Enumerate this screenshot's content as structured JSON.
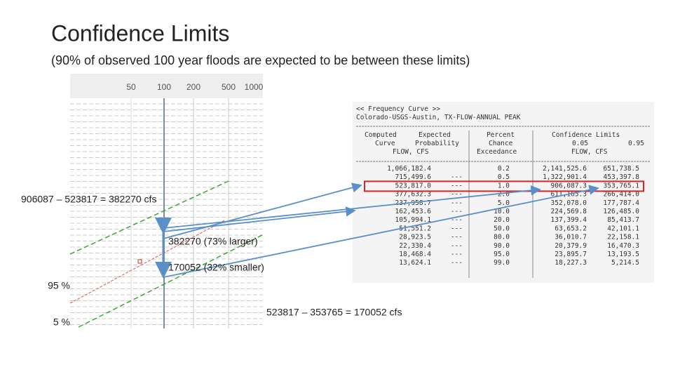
{
  "title": "Confidence Limits",
  "subtitle": "(90% of observed 100 year floods are expected to be between these limits)",
  "plot": {
    "x_labels": [
      "50",
      "100",
      "200",
      "500",
      "1000"
    ],
    "curve_labels": [
      "95 %",
      "5 %"
    ]
  },
  "annotations": [
    "906087 – 523817 = 382270 cfs",
    "382270 (73% larger)",
    "170052 (32% smaller)",
    "523817 – 353765 = 170052 cfs"
  ],
  "table": {
    "heading": "<< Frequency Curve >>",
    "location": "Colorado-USGS-Austin, TX-FLOW-ANNUAL PEAK",
    "columns": {
      "computed": "Computed",
      "expected": "Expected",
      "curve": "Curve",
      "probability": "Probability",
      "percent": "Percent",
      "chance": "Chance",
      "exceedance": "Exceedance",
      "confidence": "Confidence Limits",
      "upper": "0.05",
      "lower": "0.95",
      "flow_left": "FLOW, CFS",
      "flow_right": "FLOW, CFS"
    },
    "rows": [
      {
        "computed": "1,066,182.4",
        "percent": "0.2",
        "upper": "2,141,525.6",
        "lower": "651,738.5"
      },
      {
        "computed": "715,499.6",
        "expected": "---",
        "percent": "0.5",
        "upper": "1,322,901.4",
        "lower": "453,397.8"
      },
      {
        "computed": "523,817.0",
        "expected": "---",
        "percent": "1.0",
        "upper": "906,087.3",
        "lower": "353,765.1"
      },
      {
        "computed": "377,632.3",
        "expected": "---",
        "percent": "2.0",
        "upper": "611,165.3",
        "lower": "266,414.0"
      },
      {
        "computed": "237,958.7",
        "expected": "---",
        "percent": "5.0",
        "upper": "352,078.0",
        "lower": "177,787.4"
      },
      {
        "computed": "162,453.6",
        "expected": "---",
        "percent": "10.0",
        "upper": "224,569.8",
        "lower": "126,485.0"
      },
      {
        "computed": "105,994.1",
        "expected": "---",
        "percent": "20.0",
        "upper": "137,399.4",
        "lower": "85,413.7"
      },
      {
        "computed": "51,551.2",
        "expected": "---",
        "percent": "50.0",
        "upper": "63,653.2",
        "lower": "42,101.1"
      },
      {
        "computed": "28,923.5",
        "expected": "---",
        "percent": "80.0",
        "upper": "36,010.7",
        "lower": "22,158.1"
      },
      {
        "computed": "22,330.4",
        "expected": "---",
        "percent": "90.0",
        "upper": "20,379.9",
        "lower": "16,470.3"
      },
      {
        "computed": "18,468.4",
        "expected": "---",
        "percent": "95.0",
        "upper": "23,895.7",
        "lower": "13,193.5"
      },
      {
        "computed": "13,624.1",
        "expected": "---",
        "percent": "99.0",
        "upper": "18,227.3",
        "lower": "5,214.5"
      }
    ]
  }
}
